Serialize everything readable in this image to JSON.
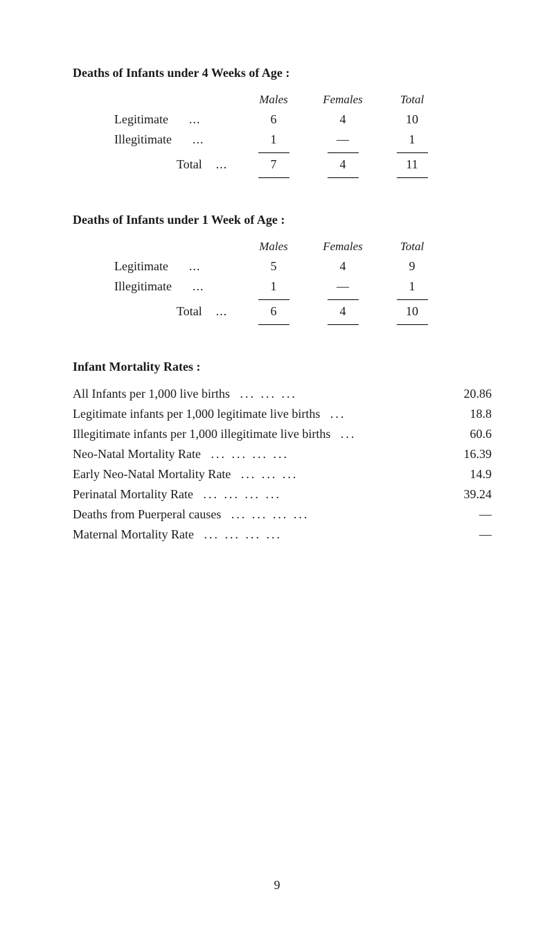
{
  "table1": {
    "title": "Deaths of Infants under 4 Weeks of Age :",
    "headers": {
      "males": "Males",
      "females": "Females",
      "total": "Total"
    },
    "rows": [
      {
        "label": "Legitimate",
        "males": "6",
        "females": "4",
        "total": "10"
      },
      {
        "label": "Illegitimate",
        "males": "1",
        "females": "—",
        "total": "1"
      }
    ],
    "total_row": {
      "label": "Total",
      "males": "7",
      "females": "4",
      "total": "11"
    }
  },
  "table2": {
    "title": "Deaths of Infants under 1 Week of Age :",
    "headers": {
      "males": "Males",
      "females": "Females",
      "total": "Total"
    },
    "rows": [
      {
        "label": "Legitimate",
        "males": "5",
        "females": "4",
        "total": "9"
      },
      {
        "label": "Illegitimate",
        "males": "1",
        "females": "—",
        "total": "1"
      }
    ],
    "total_row": {
      "label": "Total",
      "males": "6",
      "females": "4",
      "total": "10"
    }
  },
  "rates": {
    "title": "Infant Mortality Rates :",
    "items": [
      {
        "label": "All Infants per 1,000 live births",
        "dots": "...  ...  ...",
        "value": "20.86"
      },
      {
        "label": "Legitimate infants per 1,000 legitimate live births",
        "dots": "...",
        "value": "18.8"
      },
      {
        "label": "Illegitimate infants per 1,000 illegitimate live births",
        "dots": "...",
        "value": "60.6"
      },
      {
        "label": "Neo-Natal Mortality Rate",
        "dots": "...  ...  ...  ...",
        "value": "16.39"
      },
      {
        "label": "Early Neo-Natal Mortality Rate",
        "dots": "...  ...  ...",
        "value": "14.9"
      },
      {
        "label": "Perinatal Mortality Rate",
        "dots": "...  ...  ...  ...",
        "value": "39.24"
      },
      {
        "label": "Deaths from Puerperal causes",
        "dots": "...  ...  ...  ...",
        "value": "—"
      },
      {
        "label": "Maternal Mortality Rate",
        "dots": "...  ...  ...  ...",
        "value": "—"
      }
    ]
  },
  "page_number": "9"
}
